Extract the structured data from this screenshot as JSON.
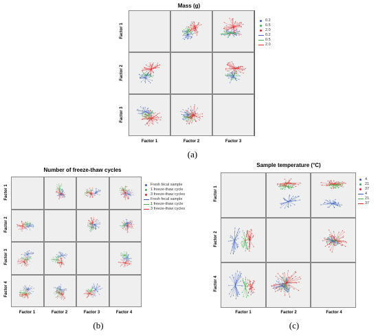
{
  "colors": {
    "blue": "#3b5fc0",
    "green": "#3fae49",
    "red": "#e02020"
  },
  "chart_data": [
    {
      "type": "scatter",
      "panel_id": "a",
      "title": "Mass (g)",
      "caption": "(a)",
      "col_labels": [
        "Factor 1",
        "Factor 2",
        "Factor 3"
      ],
      "row_labels": [
        "Factor 1",
        "Factor 2",
        "Factor 3"
      ],
      "legend_placement": "right",
      "legend": {
        "markers": [
          "0.2",
          "0.5",
          "2.0"
        ],
        "lines": [
          "0.2",
          "0.5",
          "2.0"
        ]
      },
      "series_colors": [
        "blue",
        "green",
        "red"
      ],
      "grid": false
    },
    {
      "type": "scatter",
      "panel_id": "b",
      "title": "Number of freeze-thaw cycles",
      "caption": "(b)",
      "col_labels": [
        "Factor 1",
        "Factor 2",
        "Factor 3",
        "Factor 4"
      ],
      "row_labels": [
        "Factor 1",
        "Factor 2",
        "Factor 3",
        "Factor 4"
      ],
      "legend_placement": "right",
      "legend": {
        "markers": [
          "Fresh fecal sample",
          "1 freeze-thaw cycle",
          "3 freeze-thaw cycles"
        ],
        "lines": [
          "Fresh fecal sample",
          "1 freeze-thaw cycle",
          "3 freeze-thaw cycles"
        ]
      },
      "series_colors": [
        "blue",
        "green",
        "red"
      ],
      "grid": false
    },
    {
      "type": "scatter",
      "panel_id": "c",
      "title": "Sample temperature (°C)",
      "caption": "(c)",
      "col_labels": [
        "Factor 1",
        "Factor 2",
        "Factor 4"
      ],
      "row_labels": [
        "Factor 1",
        "Factor 2",
        "Factor 4"
      ],
      "legend_placement": "right",
      "legend": {
        "markers": [
          "4",
          "21",
          "37"
        ],
        "lines": [
          "4",
          "21",
          "37"
        ]
      },
      "series_colors": [
        "blue",
        "green",
        "red"
      ],
      "grid": false
    }
  ]
}
